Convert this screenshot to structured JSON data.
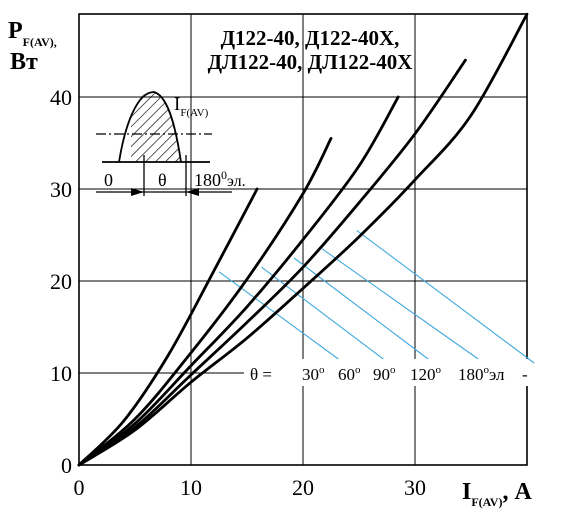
{
  "chart_data": {
    "type": "line",
    "title_lines": [
      "Д122-40,   Д122-40Х,",
      "ДЛ122-40, ДЛ122-40Х"
    ],
    "ylabel": {
      "main": "P",
      "sub": "F(AV),",
      "unit": "Вт"
    },
    "xlabel": {
      "main": "I",
      "sub": "F(AV)",
      "unit": ", А"
    },
    "xlim": [
      0,
      40
    ],
    "ylim": [
      0,
      46
    ],
    "x_ticks": [
      "0",
      "10",
      "20",
      "30"
    ],
    "y_ticks": [
      "0",
      "10",
      "20",
      "30",
      "40"
    ],
    "grid": true,
    "series": [
      {
        "name": "30°",
        "x": [
          0,
          4,
          8,
          12,
          15.9
        ],
        "y": [
          0,
          4.8,
          12,
          21,
          30
        ]
      },
      {
        "name": "60°",
        "x": [
          0,
          5,
          10,
          15,
          20,
          22.5
        ],
        "y": [
          0,
          5,
          12.2,
          20.2,
          29.5,
          35.5
        ]
      },
      {
        "name": "90°",
        "x": [
          0,
          5,
          10,
          15,
          20,
          25,
          28.5
        ],
        "y": [
          0,
          4.5,
          10.8,
          17.2,
          24.5,
          32.5,
          40
        ]
      },
      {
        "name": "120°",
        "x": [
          0,
          5,
          10,
          15,
          20,
          25,
          30,
          34.5
        ],
        "y": [
          0,
          4.1,
          9.8,
          15.5,
          21.5,
          28.5,
          36,
          44
        ]
      },
      {
        "name": "180°",
        "x": [
          0,
          5,
          10,
          15,
          20,
          25,
          30,
          35,
          40
        ],
        "y": [
          0,
          3.8,
          9,
          13.8,
          19.2,
          24.8,
          31,
          38,
          49
        ]
      }
    ],
    "theta_legend": {
      "prefix": "θ  =",
      "items": [
        "30°",
        "60°",
        "90°",
        "120°",
        "180°эл"
      ],
      "suffix": "-",
      "anchors": [
        [
          12.5,
          21
        ],
        [
          16.3,
          21.5
        ],
        [
          19.2,
          22.5
        ],
        [
          21.7,
          23.5
        ],
        [
          24.8,
          25.5
        ]
      ],
      "label_positions": [
        [
          24,
          10
        ],
        [
          28,
          10
        ],
        [
          32,
          10
        ],
        [
          36.5,
          10
        ],
        [
          41,
          10
        ]
      ]
    },
    "inset": {
      "left_label": "0",
      "mid_label": "θ",
      "right_label": "180",
      "right_sup": "0",
      "right_unit": "эл.",
      "current_label": "I",
      "current_sub": "F(AV)"
    },
    "colors": {
      "curve": "#000000",
      "grid": "#000000",
      "leader": "#3fa9dc",
      "hatch": "#000000"
    }
  }
}
